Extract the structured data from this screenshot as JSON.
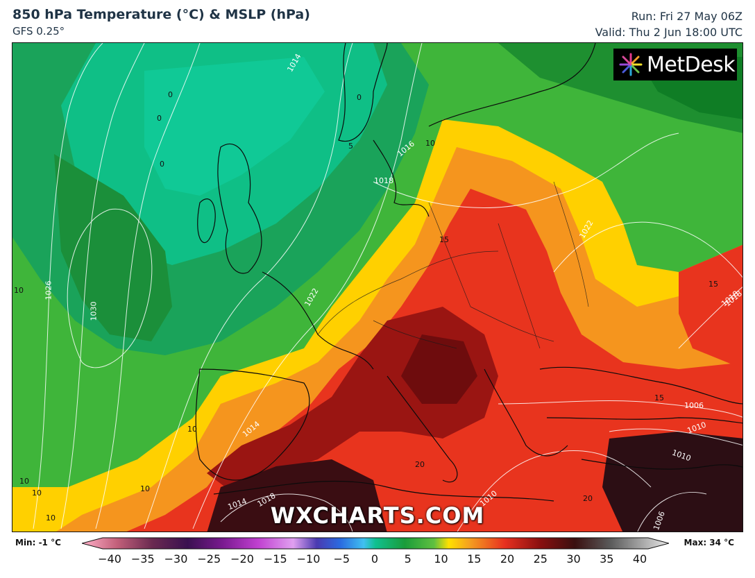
{
  "header": {
    "title": "850 hPa Temperature (°C) & MSLP (hPa)",
    "model": "GFS 0.25°",
    "run": "Run: Fri 27 May 06Z",
    "valid": "Valid: Thu 2 Jun 18:00 UTC"
  },
  "logo": {
    "text": "MetDesk"
  },
  "watermark": "WXCHARTS.COM",
  "legend": {
    "min_label": "Min: -1 °C",
    "max_label": "Max: 34 °C",
    "ticks": [
      "−40",
      "−35",
      "−30",
      "−25",
      "−20",
      "−15",
      "−10",
      "−5",
      "0",
      "5",
      "10",
      "15",
      "20",
      "25",
      "30",
      "35",
      "40"
    ]
  },
  "map": {
    "isobar_labels": [
      "1014",
      "1016",
      "1018",
      "1022",
      "1026",
      "1030",
      "1022",
      "1018",
      "1014",
      "1010",
      "1006",
      "1010",
      "1014",
      "1018",
      "1010",
      "1006",
      "1018"
    ],
    "temp_labels": [
      "0",
      "0",
      "0",
      "0",
      "5",
      "10",
      "15",
      "15",
      "15",
      "10",
      "10",
      "10",
      "10",
      "10",
      "10",
      "20",
      "20"
    ],
    "colors": {
      "cold": "#0fb980",
      "cool": "#1a9c3a",
      "mild": "#46c03c",
      "warm_yellow": "#ffd400",
      "orange": "#f59a20",
      "red": "#e62a1c",
      "dark_red": "#7a0f10",
      "very_dark": "#2a1015"
    }
  }
}
